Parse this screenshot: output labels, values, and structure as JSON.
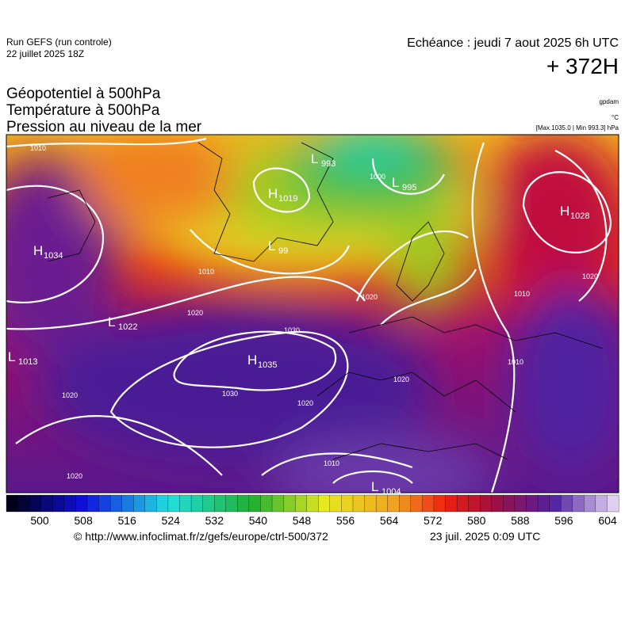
{
  "header": {
    "run": "Run GEFS (run controle)",
    "run_date": "22 juillet 2025 18Z",
    "valid": "Echéance : jeudi 7 aout 2025 6h UTC",
    "lead": "+ 372H"
  },
  "titles": [
    "Géopotentiel à 500hPa",
    "Température à 500hPa",
    "Pression au niveau de la mer"
  ],
  "units": {
    "geopotential": "gpdam",
    "temperature": "°C",
    "pressure": "[Max 1035.0 | Min 993.3] hPa"
  },
  "centers": [
    {
      "letter": "H",
      "value": "1034"
    },
    {
      "letter": "L",
      "value": "1022"
    },
    {
      "letter": "L",
      "value": "1013"
    },
    {
      "letter": "H",
      "value": "1035"
    },
    {
      "letter": "H",
      "value": "1019"
    },
    {
      "letter": "L",
      "value": "993"
    },
    {
      "letter": "L",
      "value": "995"
    },
    {
      "letter": "L",
      "value": "99"
    },
    {
      "letter": "H",
      "value": "1028"
    },
    {
      "letter": "L",
      "value": "1004"
    }
  ],
  "isobar_labels": [
    "1010",
    "1030",
    "1020",
    "1020",
    "1030",
    "1020",
    "1020",
    "1010",
    "1010",
    "1020",
    "1000",
    "1010",
    "1020",
    "1020",
    "1010"
  ],
  "colorbar": {
    "labels": [
      "500",
      "508",
      "516",
      "524",
      "532",
      "540",
      "548",
      "556",
      "564",
      "572",
      "580",
      "588",
      "596",
      "604"
    ]
  },
  "footer": {
    "source": "© http://www.infoclimat.fr/z/gefs/europe/ctrl-500/372",
    "generated": "23 juil. 2025  0:09 UTC"
  }
}
